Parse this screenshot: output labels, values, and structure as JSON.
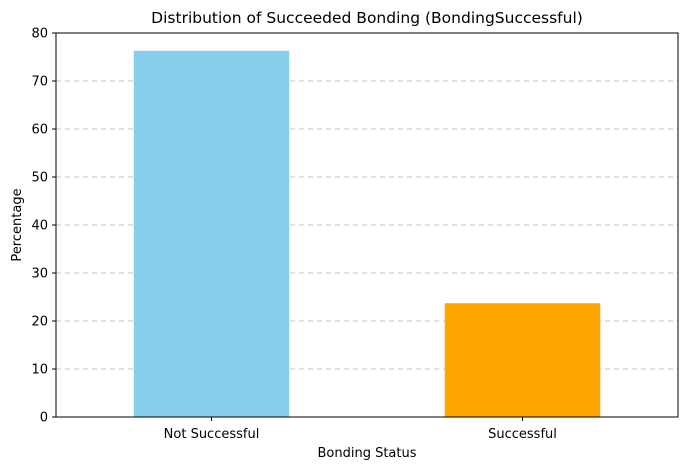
{
  "chart_data": {
    "type": "bar",
    "title": "Distribution of Succeeded Bonding (BondingSuccessful)",
    "xlabel": "Bonding Status",
    "ylabel": "Percentage",
    "categories": [
      "Not Successful",
      "Successful"
    ],
    "values": [
      76.3,
      23.7
    ],
    "colors": [
      "#87ceeb",
      "#ffa500"
    ],
    "ylim": [
      0,
      80
    ],
    "yticks": [
      0,
      10,
      20,
      30,
      40,
      50,
      60,
      70,
      80
    ],
    "grid": "y-dashed",
    "legend": "none"
  }
}
